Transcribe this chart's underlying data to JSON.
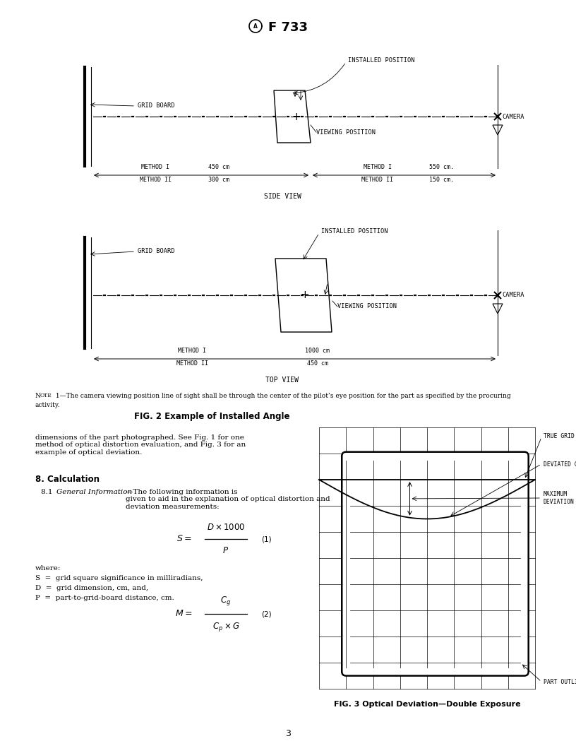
{
  "page_number": "3",
  "background": "#ffffff",
  "fig2_caption": "FIG. 2 Example of Installed Angle",
  "fig3_caption": "FIG. 3 Optical Deviation—Double Exposure",
  "note1": "NOTE 1—The camera viewing position line of sight shall be through the center of the pilot’s eye position for the part as specified by the procuring\nactivity.",
  "section8_title": "8. Calculation",
  "section8_p1a": "8.1 ",
  "section8_p1b": "General Information",
  "section8_p1c": "—The following information is\ngiven to aid in the explanation of optical distortion and\ndeviation measurements:",
  "formula1_label": "(1)",
  "where_label": "where:",
  "S_def": "S  =  grid square significance in milliradians,",
  "D_def": "D  =  grid dimension, cm, and,",
  "P_def": "P  =  part-to-grid-board distance, cm.",
  "formula2_label": "(2)",
  "body_text": "dimensions of the part photographed. See Fig. 1 for one\nmethod of optical distortion evaluation, and Fig. 3 for an\nexample of optical deviation.",
  "side_view_label": "SIDE VIEW",
  "top_view_label": "TOP VIEW",
  "grid_board_label": "GRID BOARD",
  "camera_label": "CAMERA",
  "installed_position_label": "INSTALLED POSITION",
  "viewing_position_label": "VIEWING POSITION",
  "method1_left_label": "METHOD I",
  "method2_left_label": "METHOD II",
  "method1_left_dist": "450 cm",
  "method2_left_dist": "300 cm",
  "method1_right_label": "METHOD I",
  "method2_right_label": "METHOD II",
  "method1_right_dist": "550 cm.",
  "method2_right_dist": "150 cm.",
  "top_method1_label": "METHOD I",
  "top_method2_label": "METHOD II",
  "top_method1_dist": "1000 cm",
  "top_method2_dist": "450 cm",
  "true_grid_line_label": "TRUE GRID LINE",
  "deviated_grid_line_label": "DEVIATED GRID LINE",
  "maximum_deviation_label": "MAXIMUM\nDEVIATION",
  "part_outline_label": "PART OUTLINE"
}
